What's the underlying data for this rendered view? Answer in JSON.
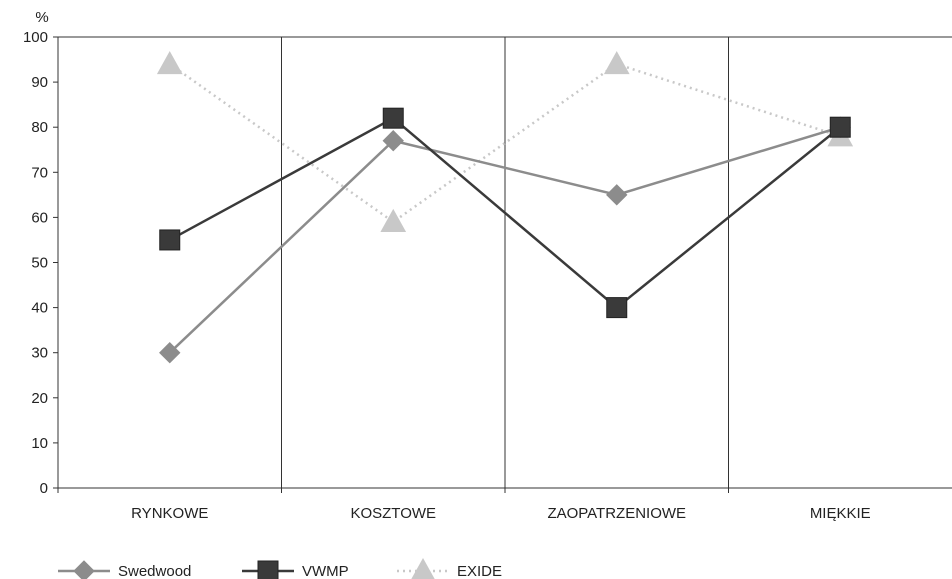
{
  "chart_data": {
    "type": "line",
    "categories": [
      "RYNKOWE",
      "KOSZTOWE",
      "ZAOPATRZENIOWE",
      "MIĘKKIE"
    ],
    "ylabel": "%",
    "ylim": [
      0,
      100
    ],
    "yticks": [
      0,
      10,
      20,
      30,
      40,
      50,
      60,
      70,
      80,
      90,
      100
    ],
    "grid": "vertical category separators",
    "legend_position": "bottom-left",
    "series": [
      {
        "name": "Swedwood",
        "values": [
          30,
          77,
          65,
          80
        ],
        "color": "#8c8c8c",
        "marker": "diamond",
        "line": "solid"
      },
      {
        "name": "VWMP",
        "values": [
          55,
          82,
          40,
          80
        ],
        "color": "#3a3a3a",
        "marker": "square",
        "line": "solid"
      },
      {
        "name": "EXIDE",
        "values": [
          94,
          59,
          94,
          78
        ],
        "color": "#c8c8c8",
        "marker": "triangle",
        "line": "dotted"
      }
    ]
  }
}
